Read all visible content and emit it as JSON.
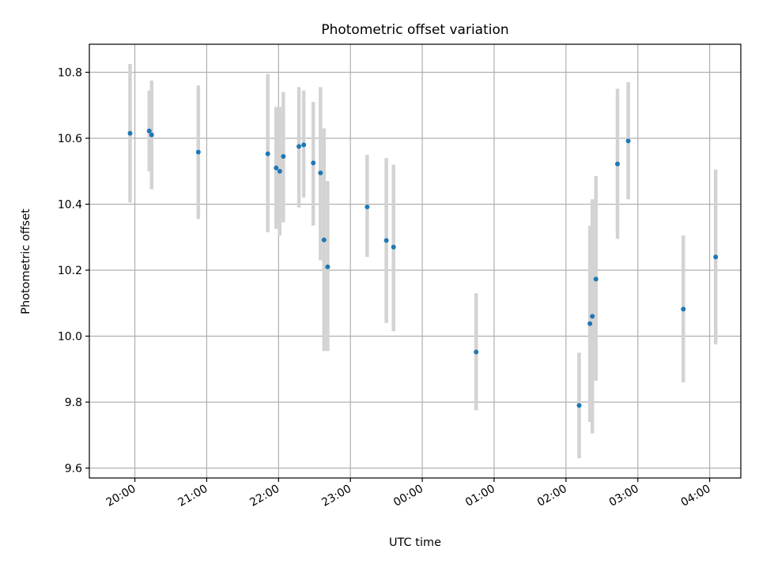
{
  "chart_data": {
    "type": "scatter",
    "title": "Photometric offset variation",
    "xlabel": "UTC time",
    "ylabel": "Photometric offset",
    "x_tick_labels": [
      "20:00",
      "21:00",
      "22:00",
      "23:00",
      "00:00",
      "01:00",
      "02:00",
      "03:00",
      "04:00"
    ],
    "y_tick_labels": [
      "9.6",
      "9.8",
      "10.0",
      "10.2",
      "10.4",
      "10.6",
      "10.8"
    ],
    "y_ticks": [
      9.6,
      9.8,
      10.0,
      10.2,
      10.4,
      10.6,
      10.8
    ],
    "x_ticks": [
      "20:00",
      "21:00",
      "22:00",
      "23:00",
      "24:00",
      "25:00",
      "26:00",
      "27:00",
      "28:00"
    ],
    "xlim": [
      "19:22",
      "28:26"
    ],
    "ylim": [
      9.57,
      10.885
    ],
    "grid": true,
    "colors": {
      "marker": "#1f77b4",
      "errorbar": "#d3d3d3",
      "grid": "#b0b0b0"
    },
    "points": [
      {
        "t": "19:56",
        "y": 10.615,
        "lo": 10.405,
        "hi": 10.825
      },
      {
        "t": "20:12",
        "y": 10.622,
        "lo": 10.5,
        "hi": 10.745
      },
      {
        "t": "20:14",
        "y": 10.61,
        "lo": 10.445,
        "hi": 10.775
      },
      {
        "t": "20:53",
        "y": 10.558,
        "lo": 10.355,
        "hi": 10.76
      },
      {
        "t": "21:51",
        "y": 10.553,
        "lo": 10.315,
        "hi": 10.795
      },
      {
        "t": "21:58",
        "y": 10.51,
        "lo": 10.325,
        "hi": 10.695
      },
      {
        "t": "22:01",
        "y": 10.5,
        "lo": 10.305,
        "hi": 10.695
      },
      {
        "t": "22:04",
        "y": 10.545,
        "lo": 10.345,
        "hi": 10.74
      },
      {
        "t": "22:17",
        "y": 10.575,
        "lo": 10.39,
        "hi": 10.755
      },
      {
        "t": "22:21",
        "y": 10.58,
        "lo": 10.42,
        "hi": 10.745
      },
      {
        "t": "22:29",
        "y": 10.525,
        "lo": 10.335,
        "hi": 10.71
      },
      {
        "t": "22:35",
        "y": 10.495,
        "lo": 10.23,
        "hi": 10.755
      },
      {
        "t": "22:38",
        "y": 10.292,
        "lo": 9.955,
        "hi": 10.63
      },
      {
        "t": "22:41",
        "y": 10.21,
        "lo": 9.955,
        "hi": 10.47
      },
      {
        "t": "23:14",
        "y": 10.392,
        "lo": 10.24,
        "hi": 10.55
      },
      {
        "t": "23:30",
        "y": 10.29,
        "lo": 10.04,
        "hi": 10.54
      },
      {
        "t": "23:36",
        "y": 10.27,
        "lo": 10.015,
        "hi": 10.52
      },
      {
        "t": "24:45",
        "y": 9.952,
        "lo": 9.775,
        "hi": 10.13
      },
      {
        "t": "26:11",
        "y": 9.79,
        "lo": 9.63,
        "hi": 9.95
      },
      {
        "t": "26:20",
        "y": 10.038,
        "lo": 9.74,
        "hi": 10.335
      },
      {
        "t": "26:22",
        "y": 10.06,
        "lo": 9.705,
        "hi": 10.415
      },
      {
        "t": "26:25",
        "y": 10.173,
        "lo": 9.865,
        "hi": 10.485
      },
      {
        "t": "26:43",
        "y": 10.522,
        "lo": 10.295,
        "hi": 10.75
      },
      {
        "t": "26:52",
        "y": 10.592,
        "lo": 10.415,
        "hi": 10.77
      },
      {
        "t": "27:38",
        "y": 10.082,
        "lo": 9.86,
        "hi": 10.305
      },
      {
        "t": "28:05",
        "y": 10.24,
        "lo": 9.975,
        "hi": 10.505
      }
    ]
  }
}
